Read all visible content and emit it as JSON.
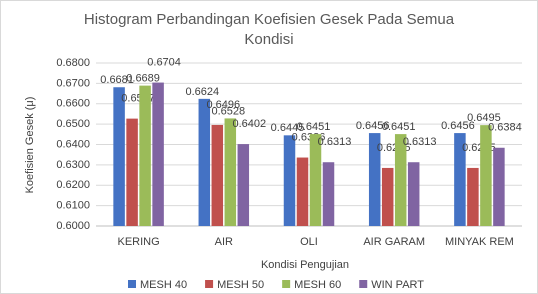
{
  "chart_data": {
    "type": "bar",
    "title": "Histogram Perbandingan Koefisien Gesek Pada Semua Kondisi",
    "x_label": "Kondisi Pengujian",
    "y_label": "Koefisien Gesek (μ)",
    "categories": [
      "KERING",
      "AIR",
      "OLI",
      "AIR GARAM",
      "MINYAK REM"
    ],
    "series": [
      {
        "name": "MESH 40",
        "color": "#4472c4",
        "values": [
          0.6681,
          0.6624,
          0.6445,
          0.6456,
          0.6456
        ]
      },
      {
        "name": "MESH 50",
        "color": "#c0504d",
        "values": [
          0.6527,
          0.6496,
          0.6336,
          0.6285,
          0.6285
        ]
      },
      {
        "name": "MESH 60",
        "color": "#9bbb59",
        "values": [
          0.6689,
          0.6528,
          0.6451,
          0.6451,
          0.6495
        ]
      },
      {
        "name": "WIN PART",
        "color": "#8064a2",
        "values": [
          0.6704,
          0.6402,
          0.6313,
          0.6313,
          0.6384
        ]
      }
    ],
    "ylim": [
      0.6,
      0.68
    ],
    "yticks": [
      {
        "value": 0.6,
        "label": "0.6000"
      },
      {
        "value": 0.61,
        "label": "0.6100"
      },
      {
        "value": 0.62,
        "label": "0.6200"
      },
      {
        "value": 0.63,
        "label": "0.6300"
      },
      {
        "value": 0.64,
        "label": "0.6400"
      },
      {
        "value": 0.65,
        "label": "0.6500"
      },
      {
        "value": 0.66,
        "label": "0.6600"
      },
      {
        "value": 0.67,
        "label": "0.6700"
      },
      {
        "value": 0.68,
        "label": "0.6800"
      }
    ],
    "grid": true,
    "legend": "bottom"
  }
}
